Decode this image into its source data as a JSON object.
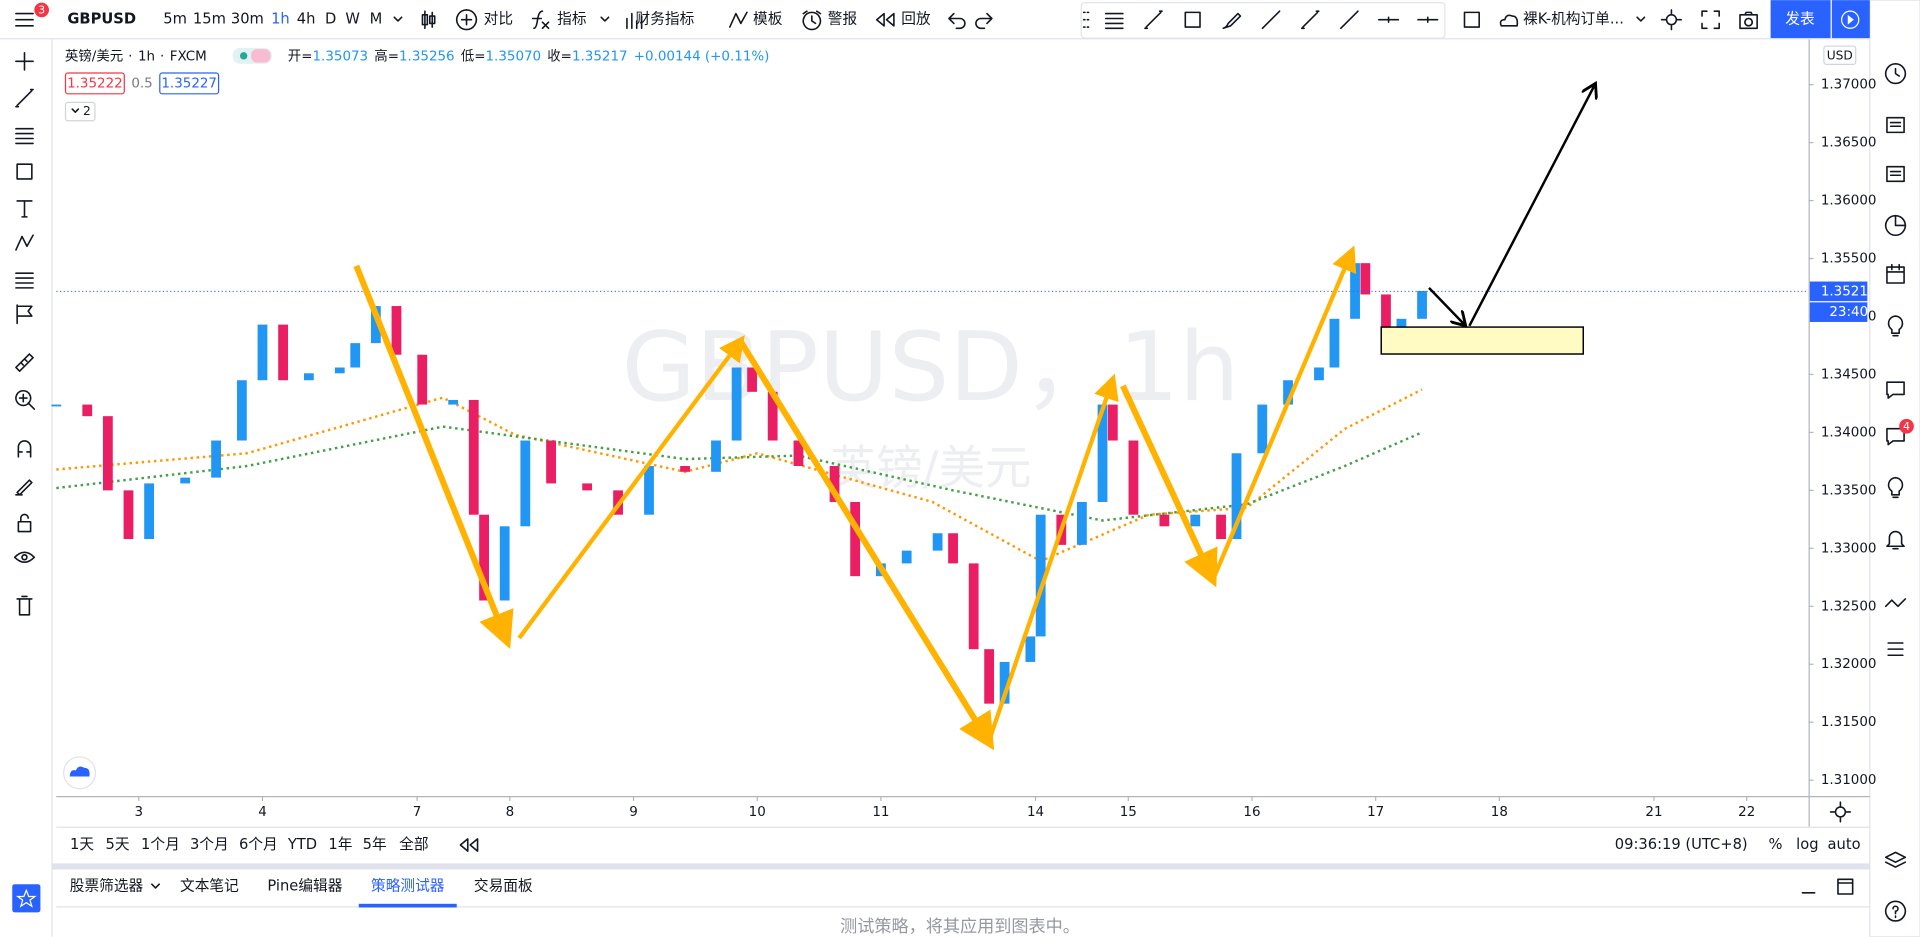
{
  "toolbar": {
    "symbol": "GBPUSD",
    "menu_badge": "3",
    "intervals": [
      "5m",
      "15m",
      "30m",
      "1h",
      "4h",
      "D",
      "W",
      "M"
    ],
    "active_interval": "1h",
    "buttons": [
      "对比",
      "指标",
      "财务指标",
      "模板",
      "警报",
      "回放"
    ],
    "layout_name": "裸K-机构订单...",
    "publish": "发表"
  },
  "legend": {
    "symbol_name": "英镑/美元",
    "interval": "1h",
    "source": "FXCM",
    "ohlc": [
      {
        "label": "开=",
        "value": "1.35073"
      },
      {
        "label": "高=",
        "value": "1.35256"
      },
      {
        "label": "低=",
        "value": "1.35070"
      },
      {
        "label": "收=",
        "value": "1.35217"
      }
    ],
    "change": "+0.00144 (+0.11%)",
    "sell": "1.35222",
    "spread": "0.5",
    "buy": "1.35227",
    "collapsed_count": "2"
  },
  "watermark": {
    "line1": "GBPUSD，1h",
    "line2": "英镑/美元"
  },
  "chart_data": {
    "type": "candlestick",
    "currency": "USD",
    "candles": {
      "up_color": "#2196f3",
      "down_color": "#e91e63",
      "x": [
        -16,
        -10,
        -6,
        -2,
        2,
        9,
        15,
        20,
        24,
        28,
        33,
        39,
        42,
        46,
        50,
        55,
        61,
        65,
        67,
        71,
        75,
        80,
        87,
        93,
        99,
        106,
        112,
        116,
        119,
        123,
        128,
        135,
        139,
        144,
        149,
        155,
        158,
        162,
        165,
        168,
        173,
        175,
        179,
        183,
        187,
        189,
        193,
        199,
        205,
        210,
        213,
        218,
        223,
        229,
        232,
        236,
        238,
        242,
        245,
        249
      ],
      "values": [
        1.3424,
        1.3414,
        1.335,
        1.3308,
        1.3356,
        1.3361,
        1.3393,
        1.3445,
        1.3493,
        1.3445,
        1.3451,
        1.3456,
        1.3477,
        1.3509,
        1.3467,
        1.3424,
        1.3428,
        1.3329,
        1.3255,
        1.3319,
        1.3393,
        1.3356,
        1.335,
        1.3329,
        1.3371,
        1.3366,
        1.3393,
        1.3456,
        1.3435,
        1.3393,
        1.3371,
        1.334,
        1.3276,
        1.3287,
        1.3298,
        1.3313,
        1.3287,
        1.3213,
        1.3166,
        1.3202,
        1.3224,
        1.3329,
        1.3303,
        1.334,
        1.3424,
        1.3393,
        1.3329,
        1.3319,
        1.3329,
        1.3308,
        1.3382,
        1.3424,
        1.3445,
        1.3456,
        1.3498,
        1.3546,
        1.3519,
        1.3482,
        1.3498,
        1.3522
      ]
    },
    "moving_averages": [
      {
        "color": "#ff9800",
        "x": [
          -16,
          21,
          59,
          73,
          106,
          120,
          154,
          175,
          196,
          215,
          234,
          249
        ],
        "values": [
          1.3368,
          1.3382,
          1.343,
          1.3398,
          1.3366,
          1.3382,
          1.334,
          1.3289,
          1.3329,
          1.3335,
          1.3403,
          1.3437
        ]
      },
      {
        "color": "#43a047",
        "x": [
          -16,
          21,
          59,
          106,
          128,
          158,
          187,
          215,
          234,
          249
        ],
        "values": [
          1.3352,
          1.3371,
          1.3405,
          1.3377,
          1.338,
          1.335,
          1.3324,
          1.3338,
          1.3371,
          1.34
        ]
      }
    ],
    "last_price": 1.35217,
    "countdown": "23:40",
    "grid": false,
    "ylim": [
      1.30863,
      1.37391
    ],
    "yticks": [
      {
        "value": 1.31,
        "label": "1.31000"
      },
      {
        "value": 1.315,
        "label": "1.31500"
      },
      {
        "value": 1.32,
        "label": "1.32000"
      },
      {
        "value": 1.325,
        "label": "1.32500"
      },
      {
        "value": 1.33,
        "label": "1.33000"
      },
      {
        "value": 1.335,
        "label": "1.33500"
      },
      {
        "value": 1.34,
        "label": "1.34000"
      },
      {
        "value": 1.345,
        "label": "1.34500"
      },
      {
        "value": 1.35,
        "label": "1.35000"
      },
      {
        "value": 1.355,
        "label": "1.35500"
      },
      {
        "value": 1.36,
        "label": "1.36000"
      },
      {
        "value": 1.365,
        "label": "1.36500"
      },
      {
        "value": 1.37,
        "label": "1.37000"
      }
    ],
    "xlim": [
      -16,
      324
    ],
    "xticks": [
      {
        "value": 0,
        "label": "3"
      },
      {
        "value": 24,
        "label": "4"
      },
      {
        "value": 54,
        "label": "7"
      },
      {
        "value": 72,
        "label": "8"
      },
      {
        "value": 96,
        "label": "9"
      },
      {
        "value": 120,
        "label": "10"
      },
      {
        "value": 144,
        "label": "11"
      },
      {
        "value": 174,
        "label": "14"
      },
      {
        "value": 192,
        "label": "15"
      },
      {
        "value": 216,
        "label": "16"
      },
      {
        "value": 240,
        "label": "17"
      },
      {
        "value": 264,
        "label": "18"
      },
      {
        "value": 294,
        "label": "21"
      },
      {
        "value": 312,
        "label": "22"
      }
    ]
  },
  "bottom_bar": {
    "ranges": [
      "1天",
      "5天",
      "1个月",
      "3个月",
      "6个月",
      "YTD",
      "1年",
      "5年",
      "全部"
    ],
    "clock": "09:36:19 (UTC+8)",
    "options": [
      "%",
      "log",
      "auto"
    ]
  },
  "panel": {
    "tabs": [
      "股票筛选器",
      "文本笔记",
      "Pine编辑器",
      "策略测试器",
      "交易面板"
    ],
    "active_tab": "策略测试器",
    "message": "测试策略，将其应用到图表中。"
  },
  "sidebar": {
    "chat_badge": "4"
  }
}
